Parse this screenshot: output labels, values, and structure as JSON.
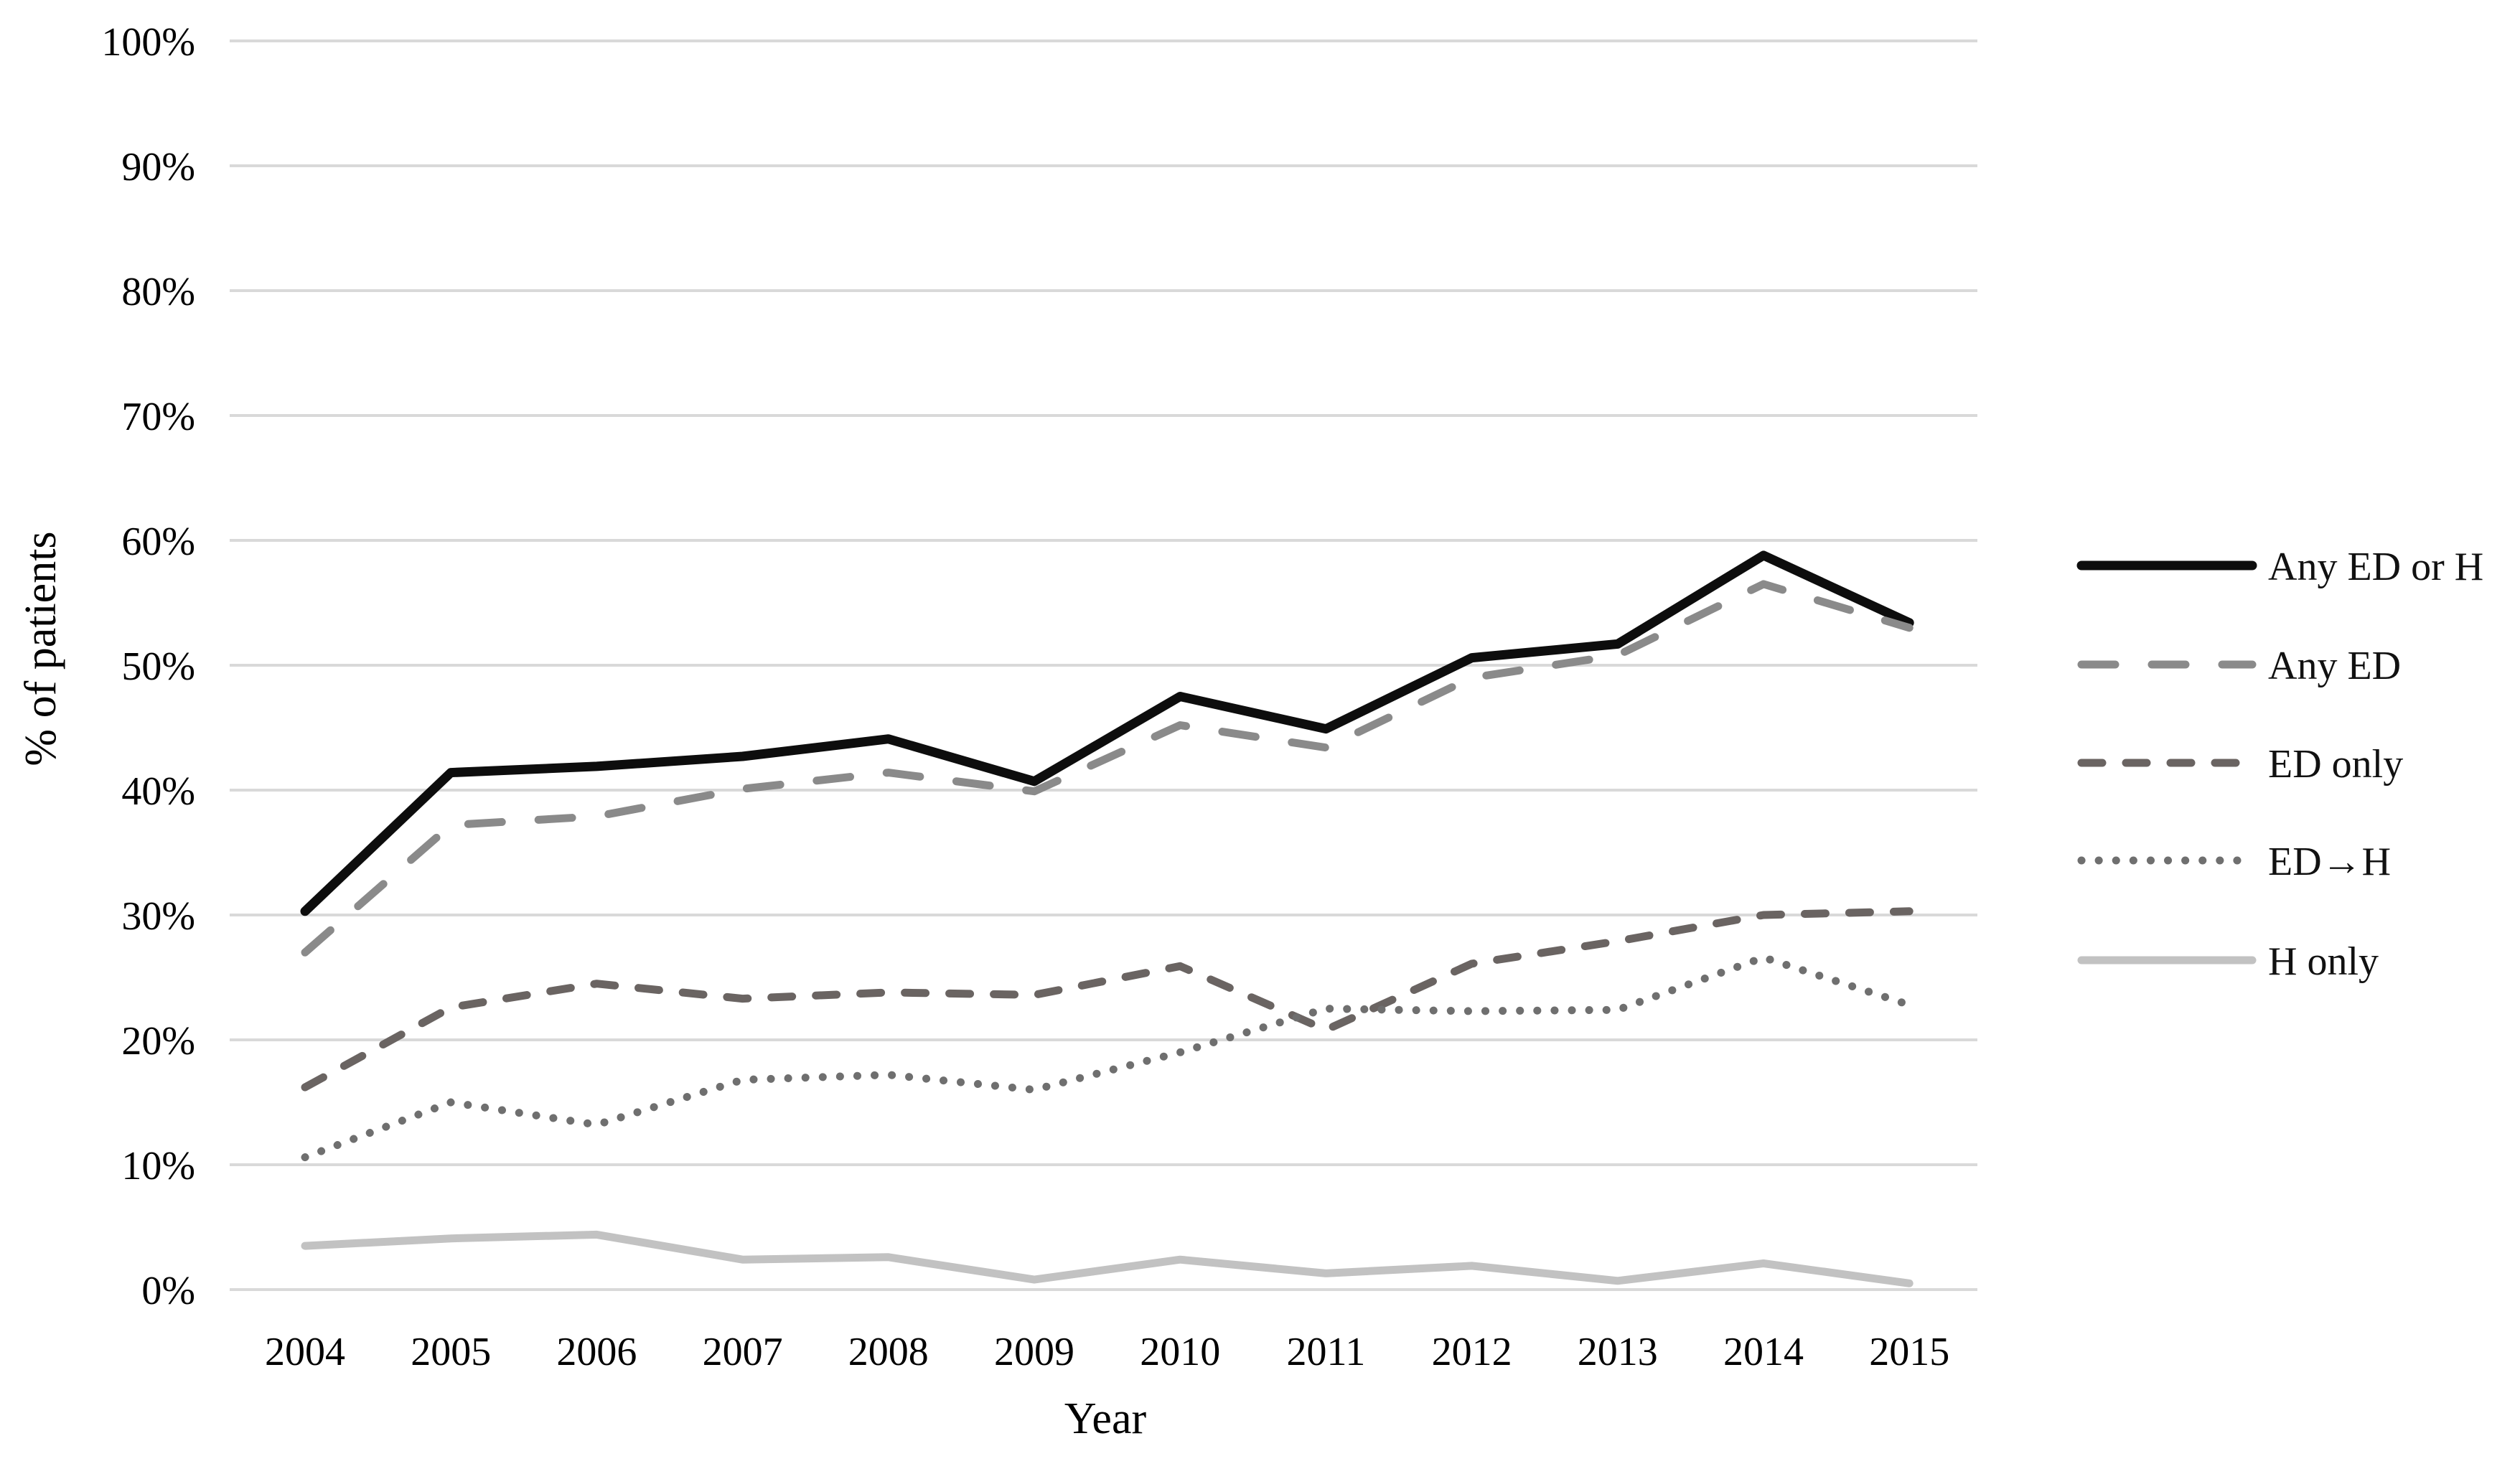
{
  "chart_data": {
    "type": "line",
    "title": "",
    "xlabel": "Year",
    "ylabel": "% of patients",
    "categories": [
      "2004",
      "2005",
      "2006",
      "2007",
      "2008",
      "2009",
      "2010",
      "2011",
      "2012",
      "2013",
      "2014",
      "2015"
    ],
    "ylim": [
      0,
      100
    ],
    "ytick_step": 10,
    "y_tick_labels": [
      "100%",
      "90%",
      "80%",
      "70%",
      "60%",
      "50%",
      "40%",
      "30%",
      "20%",
      "10%",
      "0%"
    ],
    "grid": true,
    "legend_position": "right",
    "colors": {
      "grid": "#d9d9d9",
      "text": "#000000"
    },
    "series": [
      {
        "name": "Any ED or H",
        "style": "solid",
        "color": "#0d0d0d",
        "values": [
          30.3,
          41.4,
          41.9,
          42.7,
          44.1,
          40.7,
          47.5,
          44.9,
          50.6,
          51.7,
          58.8,
          53.4
        ]
      },
      {
        "name": "Any ED",
        "style": "long-dash",
        "color": "#8a8a8a",
        "values": [
          27.0,
          37.2,
          37.9,
          40.1,
          41.4,
          39.9,
          45.2,
          43.4,
          49.0,
          50.8,
          56.5,
          53.0
        ]
      },
      {
        "name": "ED only",
        "style": "dash",
        "color": "#6a6462",
        "values": [
          16.2,
          22.6,
          24.5,
          23.3,
          23.8,
          23.6,
          25.9,
          20.8,
          26.1,
          27.9,
          30.0,
          30.3
        ]
      },
      {
        "name": "ED→H",
        "style": "dot",
        "color": "#6f6f6f",
        "values": [
          10.6,
          15.0,
          13.2,
          16.8,
          17.2,
          16.0,
          19.0,
          22.5,
          22.3,
          22.4,
          26.6,
          22.8
        ]
      },
      {
        "name": "H only",
        "style": "solid-light",
        "color": "#c2c2c2",
        "values": [
          3.5,
          4.1,
          4.4,
          2.4,
          2.6,
          0.8,
          2.4,
          1.3,
          1.9,
          0.7,
          2.1,
          0.5
        ]
      }
    ]
  }
}
